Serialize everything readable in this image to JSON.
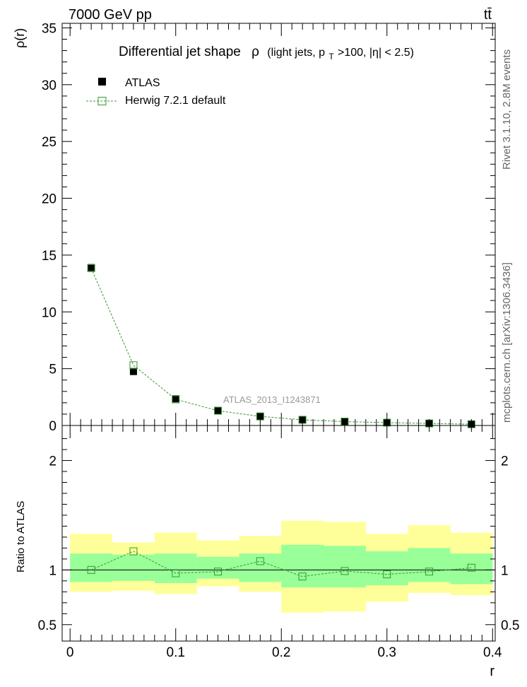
{
  "header": {
    "energy": "7000 GeV pp",
    "process": "tt̄"
  },
  "side_labels": {
    "rivet": "Rivet 3.1.10, 2.8M events",
    "mcplots": "mcplots.cern.ch [arXiv:1306.3436]"
  },
  "colors": {
    "data": "#000000",
    "mc": "#339933",
    "band_inner": "#99ff99",
    "band_outer": "#ffff99",
    "watermark": "#999999"
  },
  "chart_data": [
    {
      "type": "scatter",
      "title_main": "Differential jet shape",
      "title_rho": "ρ",
      "title_detail_a": "(light jets, p",
      "title_detail_sub": "T",
      "title_detail_b": ">100, |η| < 2.5)",
      "ylabel": "ρ(r)",
      "watermark": "ATLAS_2013_I1243871",
      "xlim": [
        -0.0075,
        0.4025
      ],
      "ylim": [
        0,
        35.4
      ],
      "x_ticks": [
        0,
        0.1,
        0.2,
        0.3,
        0.4
      ],
      "y_ticks": [
        0,
        5,
        10,
        15,
        20,
        25,
        30,
        35
      ],
      "y_tick_labels": [
        "0",
        "5",
        "10",
        "15",
        "20",
        "25",
        "30",
        "35"
      ],
      "legend": {
        "placement": "top-left",
        "entries": [
          "ATLAS",
          "Herwig 7.2.1 default"
        ]
      },
      "x": [
        0.02,
        0.06,
        0.1,
        0.14,
        0.18,
        0.22,
        0.26,
        0.3,
        0.34,
        0.38
      ],
      "series": [
        {
          "name": "ATLAS",
          "values": [
            13.9,
            4.75,
            2.35,
            1.32,
            0.78,
            0.52,
            0.35,
            0.26,
            0.19,
            0.11
          ]
        },
        {
          "name": "Herwig 7.2.1 default",
          "values": [
            13.85,
            5.3,
            2.3,
            1.3,
            0.8,
            0.5,
            0.34,
            0.25,
            0.18,
            0.11
          ]
        }
      ]
    },
    {
      "type": "scatter",
      "ylabel": "Ratio to ATLAS",
      "xlabel": "r",
      "xlim": [
        -0.0075,
        0.4025
      ],
      "ylim": [
        0.35,
        2.32
      ],
      "x_ticks": [
        0,
        0.1,
        0.2,
        0.3,
        0.4
      ],
      "x_tick_labels": [
        "0",
        "0.1",
        "0.2",
        "0.3",
        "0.4"
      ],
      "y_ticks": [
        0.5,
        1,
        2
      ],
      "y_tick_labels": [
        "0.5",
        "1",
        "2"
      ],
      "x": [
        0.02,
        0.06,
        0.1,
        0.14,
        0.18,
        0.22,
        0.26,
        0.3,
        0.34,
        0.38
      ],
      "bin_edges": [
        0,
        0.04,
        0.08,
        0.12,
        0.16,
        0.2,
        0.24,
        0.28,
        0.32,
        0.36,
        0.4
      ],
      "series": [
        {
          "name": "Herwig 7.2.1 default",
          "values": [
            1.0,
            1.17,
            0.97,
            0.985,
            1.08,
            0.94,
            0.99,
            0.96,
            0.985,
            1.02
          ]
        }
      ],
      "band_inner": {
        "low": [
          0.89,
          0.9,
          0.88,
          0.92,
          0.89,
          0.84,
          0.84,
          0.86,
          0.89,
          0.87
        ],
        "high": [
          1.15,
          1.14,
          1.15,
          1.12,
          1.15,
          1.23,
          1.22,
          1.17,
          1.2,
          1.15
        ]
      },
      "band_outer": {
        "low": [
          0.8,
          0.81,
          0.78,
          0.85,
          0.8,
          0.61,
          0.62,
          0.71,
          0.79,
          0.77
        ],
        "high": [
          1.33,
          1.25,
          1.34,
          1.27,
          1.31,
          1.45,
          1.44,
          1.33,
          1.41,
          1.34
        ]
      }
    }
  ]
}
